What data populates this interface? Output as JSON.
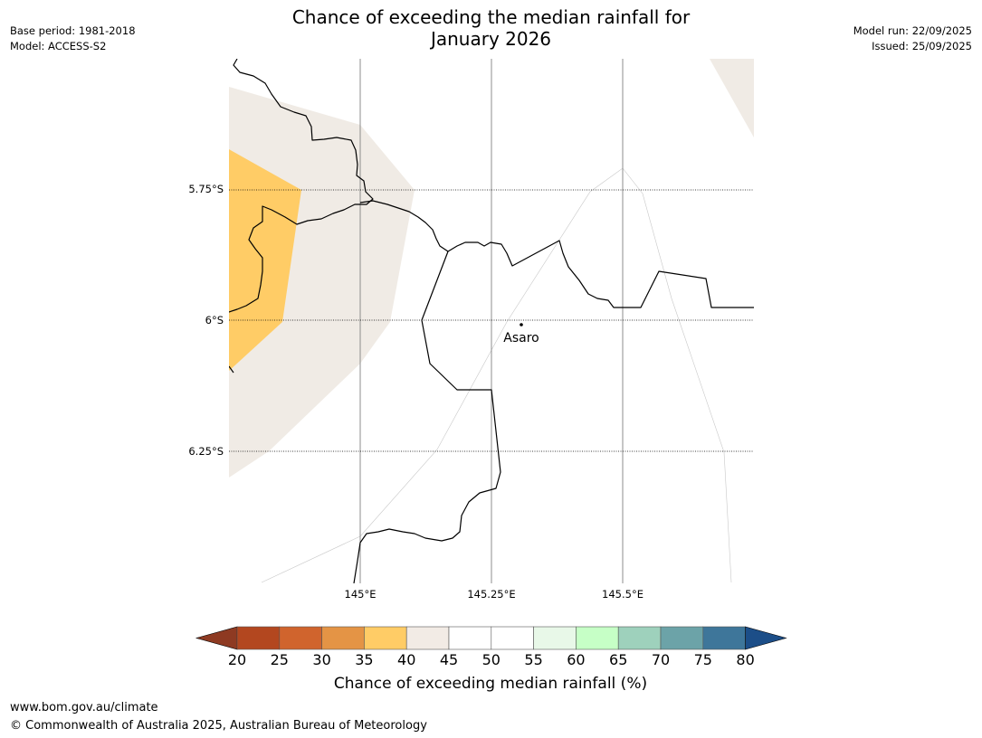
{
  "title_line1": "Chance of exceeding the median rainfall for",
  "title_line2": "January 2026",
  "base_period": "Base period: 1981-2018",
  "model": "Model: ACCESS-S2",
  "model_run": "Model run: 22/09/2025",
  "issued": "Issued: 25/09/2025",
  "map": {
    "lat_labels": [
      "5.75°S",
      "6°S",
      "6.25°S"
    ],
    "lon_labels": [
      "145°E",
      "145.25°E",
      "145.5°E"
    ],
    "place": "Asaro"
  },
  "colorbar": {
    "ticks": [
      "20",
      "25",
      "30",
      "35",
      "40",
      "45",
      "50",
      "55",
      "60",
      "65",
      "70",
      "75",
      "80"
    ],
    "colors": [
      "#8e3a22",
      "#b3471f",
      "#d0642d",
      "#e49445",
      "#ffcc66",
      "#f2ebe5",
      "#ffffff",
      "#ffffff",
      "#e8f8e8",
      "#c6ffc6",
      "#9ed1bc",
      "#6ca3a8",
      "#3e769a",
      "#1c4e88"
    ],
    "label": "Chance of exceeding median rainfall (%)"
  },
  "footer": {
    "url": "www.bom.gov.au/climate",
    "copyright": "© Commonwealth of Australia 2025, Australian Bureau of Meteorology"
  }
}
